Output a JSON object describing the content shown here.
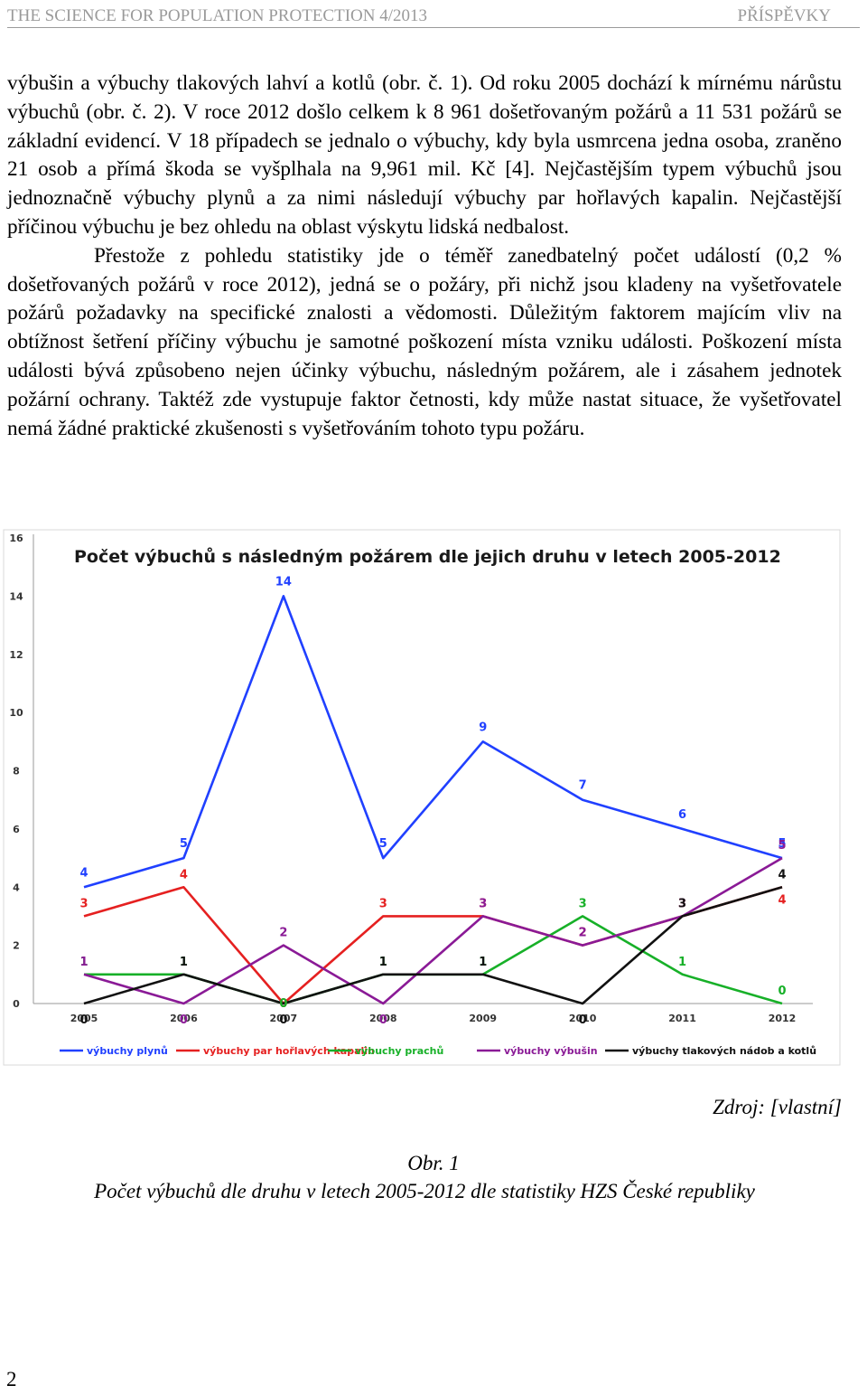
{
  "header": {
    "journal": "THE SCIENCE FOR POPULATION PROTECTION 4/2013",
    "section": "PŘÍSPĚVKY"
  },
  "body": {
    "paragraph1": "výbušin a výbuchy tlakových lahví a kotlů (obr. č. 1). Od roku 2005 dochází k mírnému nárůstu výbuchů (obr. č. 2). V roce 2012 došlo celkem k 8 961 došetřovaným požárů a 11 531 požárů se základní evidencí. V 18 případech se jednalo o výbuchy, kdy byla usmrcena jedna osoba, zraněno 21 osob a přímá škoda se vyšplhala na 9,961 mil. Kč [4]. Nejčastějším typem výbuchů jsou jednoznačně výbuchy plynů a za nimi následují výbuchy par hořlavých kapalin. Nejčastější příčinou výbuchu je bez ohledu na oblast výskytu lidská nedbalost.",
    "paragraph2": "Přestože z pohledu statistiky jde o téměř zanedbatelný počet událostí (0,2 % došetřovaných požárů v roce 2012), jedná se o požáry, při nichž jsou kladeny na vyšetřovatele požárů požadavky na specifické znalosti a vědomosti. Důležitým faktorem majícím vliv na obtížnost šetření příčiny výbuchu je samotné poškození místa vzniku události. Poškození místa události bývá způsobeno nejen účinky výbuchu, následným požárem, ale i zásahem jednotek požární ochrany. Taktéž zde vystupuje faktor četnosti, kdy může nastat situace, že vyšetřovatel nemá žádné praktické zkušenosti s vyšetřováním tohoto typu požáru."
  },
  "chart_data": {
    "type": "line",
    "title": "Počet výbuchů s následným požárem dle jejich druhu v letech 2005-2012",
    "categories": [
      "2005",
      "2006",
      "2007",
      "2008",
      "2009",
      "2010",
      "2011",
      "2012"
    ],
    "ylim": [
      0,
      16
    ],
    "yticks": [
      "0",
      "2",
      "4",
      "6",
      "8",
      "10",
      "12",
      "14",
      "16"
    ],
    "grid": false,
    "legend_position": "bottom",
    "series": [
      {
        "name": "výbuchy plynů",
        "color": "#2040ff",
        "values": [
          4,
          5,
          14,
          5,
          9,
          7,
          6,
          5
        ]
      },
      {
        "name": "výbuchy par hořlavých kapalin",
        "color": "#e52020",
        "values": [
          3,
          4,
          0,
          3,
          3,
          2,
          3,
          4
        ]
      },
      {
        "name": "výbuchy prachů",
        "color": "#17b028",
        "values": [
          1,
          1,
          0,
          1,
          1,
          3,
          1,
          0
        ]
      },
      {
        "name": "výbuchy výbušin",
        "color": "#8a1a96",
        "values": [
          1,
          0,
          2,
          0,
          3,
          2,
          3,
          5
        ]
      },
      {
        "name": "výbuchy tlakových nádob a kotlů",
        "color": "#111111",
        "values": [
          0,
          1,
          0,
          1,
          1,
          0,
          3,
          4
        ]
      }
    ]
  },
  "figure": {
    "source": "Zdroj: [vlastní]",
    "number": "Obr. 1",
    "caption": "Počet výbuchů dle druhu v letech 2005-2012 dle statistiky HZS České republiky"
  },
  "page_number": "2"
}
